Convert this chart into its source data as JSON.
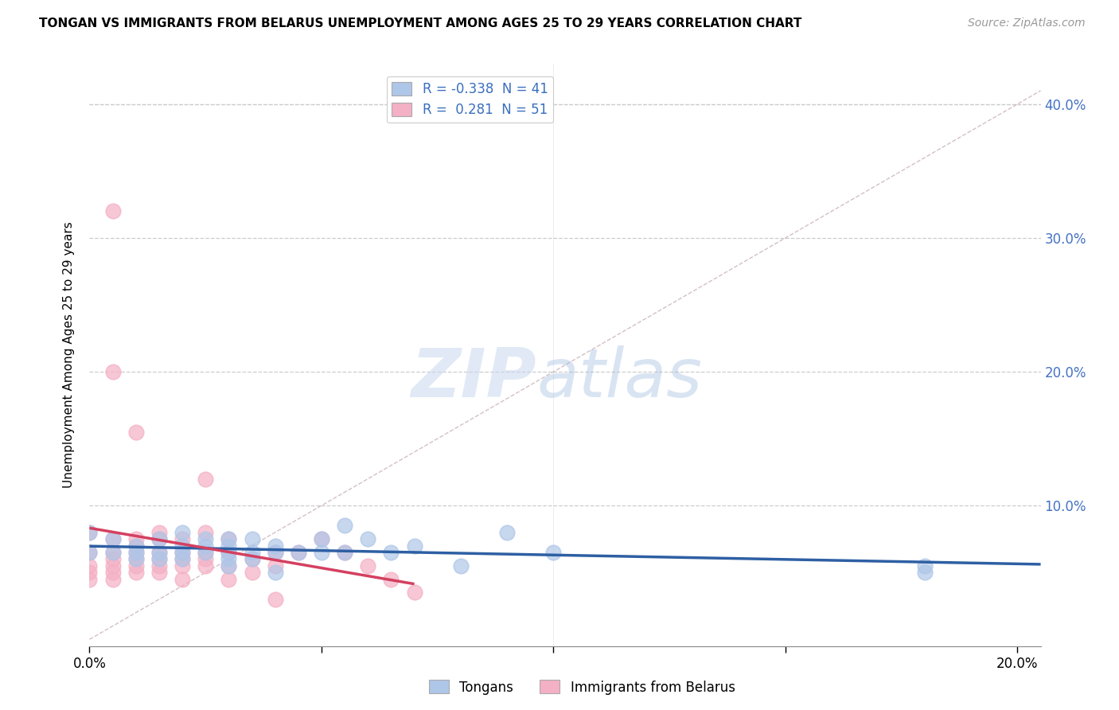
{
  "title": "TONGAN VS IMMIGRANTS FROM BELARUS UNEMPLOYMENT AMONG AGES 25 TO 29 YEARS CORRELATION CHART",
  "source": "Source: ZipAtlas.com",
  "ylabel": "Unemployment Among Ages 25 to 29 years",
  "xlim": [
    0.0,
    0.205
  ],
  "ylim": [
    -0.005,
    0.43
  ],
  "xticks": [
    0.0,
    0.05,
    0.1,
    0.15,
    0.2
  ],
  "xtick_labels": [
    "0.0%",
    "",
    "",
    "",
    "20.0%"
  ],
  "yticks": [
    0.0,
    0.1,
    0.2,
    0.3,
    0.4
  ],
  "right_ytick_labels": [
    "",
    "10.0%",
    "20.0%",
    "30.0%",
    "40.0%"
  ],
  "tongans_color": "#aec6e8",
  "tongans_edge_color": "#7aaad4",
  "belarus_color": "#f4b0c4",
  "belarus_edge_color": "#e07090",
  "tongans_line_color": "#2e5fa3",
  "belarus_line_color": "#d44060",
  "diagonal_color": "#c8b0b8",
  "R_tongans": -0.338,
  "N_tongans": 41,
  "R_belarus": 0.281,
  "N_belarus": 51,
  "watermark_zip": "ZIP",
  "watermark_atlas": "atlas",
  "background_color": "#ffffff",
  "grid_color": "#cccccc",
  "tongans_scatter_x": [
    0.0,
    0.0,
    0.005,
    0.005,
    0.01,
    0.01,
    0.01,
    0.015,
    0.015,
    0.015,
    0.02,
    0.02,
    0.02,
    0.02,
    0.025,
    0.025,
    0.025,
    0.03,
    0.03,
    0.03,
    0.03,
    0.03,
    0.035,
    0.035,
    0.035,
    0.04,
    0.04,
    0.04,
    0.045,
    0.05,
    0.05,
    0.055,
    0.055,
    0.06,
    0.065,
    0.07,
    0.08,
    0.09,
    0.1,
    0.18,
    0.18
  ],
  "tongans_scatter_y": [
    0.08,
    0.065,
    0.075,
    0.065,
    0.07,
    0.065,
    0.06,
    0.075,
    0.065,
    0.06,
    0.08,
    0.07,
    0.065,
    0.06,
    0.075,
    0.07,
    0.065,
    0.075,
    0.07,
    0.065,
    0.06,
    0.055,
    0.075,
    0.065,
    0.06,
    0.07,
    0.065,
    0.05,
    0.065,
    0.075,
    0.065,
    0.085,
    0.065,
    0.075,
    0.065,
    0.07,
    0.055,
    0.08,
    0.065,
    0.055,
    0.05
  ],
  "belarus_scatter_x": [
    0.0,
    0.0,
    0.0,
    0.0,
    0.0,
    0.005,
    0.005,
    0.005,
    0.005,
    0.005,
    0.005,
    0.005,
    0.005,
    0.01,
    0.01,
    0.01,
    0.01,
    0.01,
    0.01,
    0.01,
    0.015,
    0.015,
    0.015,
    0.015,
    0.015,
    0.015,
    0.02,
    0.02,
    0.02,
    0.02,
    0.02,
    0.025,
    0.025,
    0.025,
    0.025,
    0.025,
    0.03,
    0.03,
    0.03,
    0.03,
    0.035,
    0.035,
    0.04,
    0.04,
    0.04,
    0.045,
    0.05,
    0.055,
    0.06,
    0.065,
    0.07
  ],
  "belarus_scatter_y": [
    0.08,
    0.065,
    0.055,
    0.05,
    0.045,
    0.32,
    0.2,
    0.075,
    0.065,
    0.06,
    0.055,
    0.05,
    0.045,
    0.155,
    0.075,
    0.07,
    0.065,
    0.06,
    0.055,
    0.05,
    0.08,
    0.075,
    0.065,
    0.06,
    0.055,
    0.05,
    0.075,
    0.065,
    0.06,
    0.055,
    0.045,
    0.12,
    0.08,
    0.065,
    0.06,
    0.055,
    0.075,
    0.065,
    0.055,
    0.045,
    0.06,
    0.05,
    0.065,
    0.055,
    0.03,
    0.065,
    0.075,
    0.065,
    0.055,
    0.045,
    0.035
  ]
}
